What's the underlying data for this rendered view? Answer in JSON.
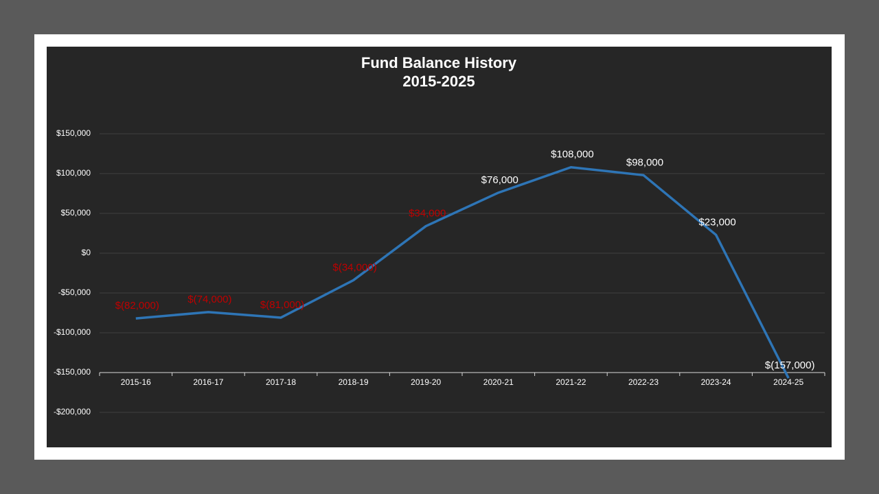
{
  "chart_data": {
    "type": "line",
    "title": "Fund Balance History",
    "subtitle": "2015-2025",
    "categories": [
      "2015-16",
      "2016-17",
      "2017-18",
      "2018-19",
      "2019-20",
      "2020-21",
      "2021-22",
      "2022-23",
      "2023-24",
      "2024-25"
    ],
    "series": [
      {
        "name": "Fund Balance",
        "color": "#2e75b6",
        "values": [
          -82000,
          -74000,
          -81000,
          -34000,
          34000,
          76000,
          108000,
          98000,
          23000,
          -157000
        ],
        "value_labels": [
          "$(82,000)",
          "$(74,000)",
          "$(81,000)",
          "$(34,000)",
          "$34,000",
          "$76,000",
          "$108,000",
          "$98,000",
          "$23,000",
          "$(157,000)"
        ],
        "value_label_colors": [
          "#c00000",
          "#c00000",
          "#c00000",
          "#c00000",
          "#c00000",
          "#ffffff",
          "#ffffff",
          "#ffffff",
          "#ffffff",
          "#ffffff"
        ]
      }
    ],
    "ylim": [
      -200000,
      150000
    ],
    "yticks": [
      {
        "value": -200000,
        "label": "-$200,000"
      },
      {
        "value": -150000,
        "label": "-$150,000"
      },
      {
        "value": -100000,
        "label": "-$100,000"
      },
      {
        "value": -50000,
        "label": "-$50,000"
      },
      {
        "value": 0,
        "label": "$0"
      },
      {
        "value": 50000,
        "label": "$50,000"
      },
      {
        "value": 100000,
        "label": "$100,000"
      },
      {
        "value": 150000,
        "label": "$150,000"
      }
    ],
    "x_axis_crosses": -150000,
    "grid": true
  }
}
